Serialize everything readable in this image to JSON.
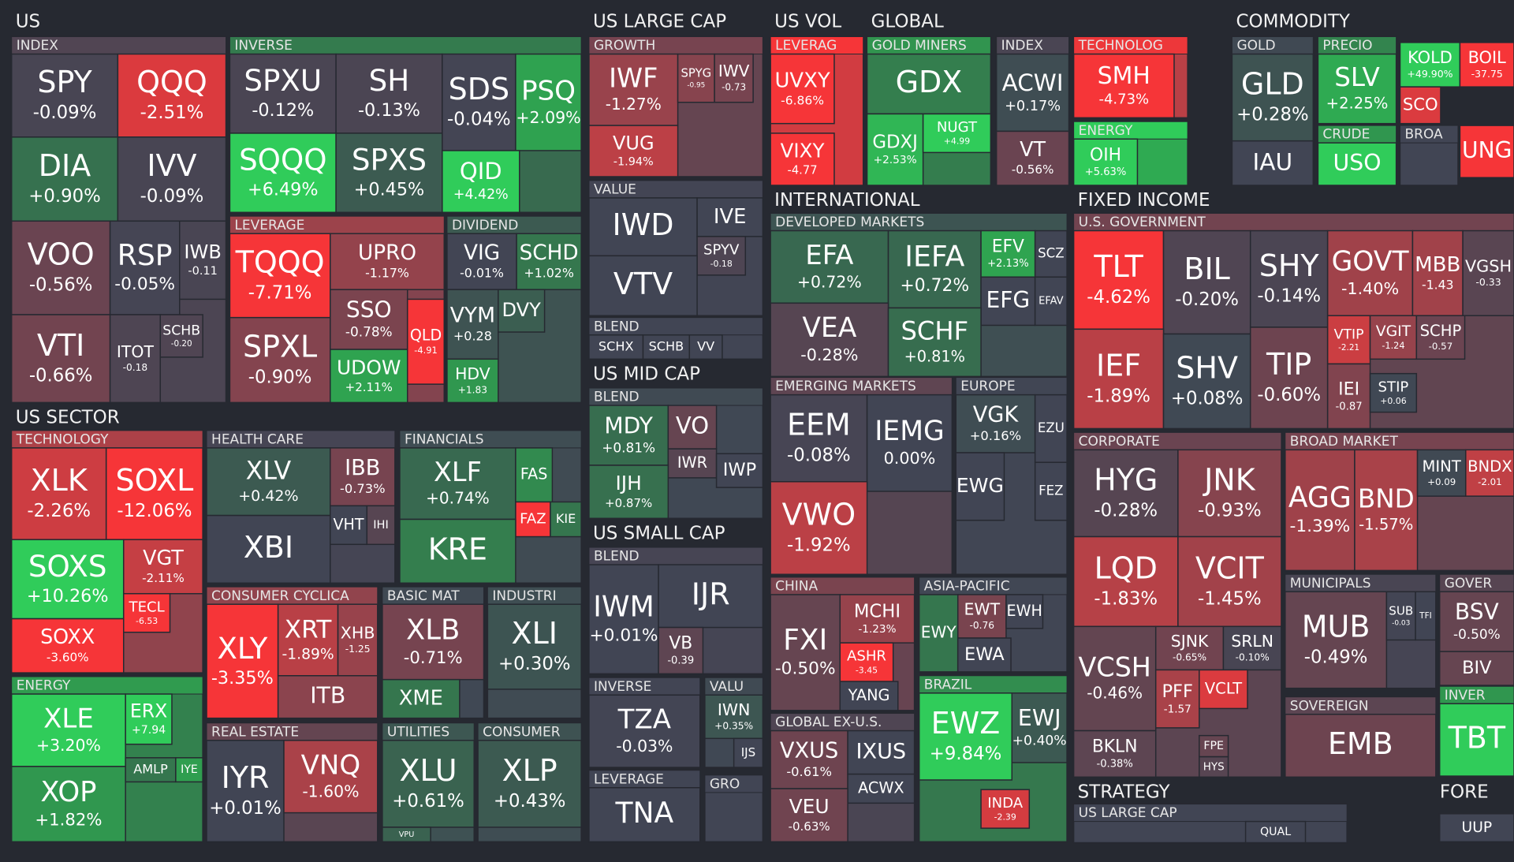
{
  "sections": [
    {
      "title": "US",
      "groups": [
        {
          "title": "INDEX",
          "tiles": [
            {
              "label": "SPY",
              "change": "-0.09%"
            },
            {
              "label": "QQQ",
              "change": "-2.51%"
            },
            {
              "label": "DIA",
              "change": "+0.90%"
            },
            {
              "label": "IVV",
              "change": "-0.09%"
            },
            {
              "label": "VOO",
              "change": "-0.56%"
            },
            {
              "label": "RSP",
              "change": "-0.05%"
            },
            {
              "label": "IWB",
              "change": "-0.11"
            },
            {
              "label": "VTI",
              "change": "-0.66%"
            },
            {
              "label": "ITOT",
              "change": "-0.18"
            },
            {
              "label": "SCHB",
              "change": "-0.20"
            }
          ]
        },
        {
          "title": "INVERSE",
          "tiles": [
            {
              "label": "SPXU",
              "change": "-0.12%"
            },
            {
              "label": "SH",
              "change": "-0.13%"
            },
            {
              "label": "SDS",
              "change": "-0.04%"
            },
            {
              "label": "PSQ",
              "change": "+2.09%"
            },
            {
              "label": "SQQQ",
              "change": "+6.49%"
            },
            {
              "label": "SPXS",
              "change": "+0.45%"
            },
            {
              "label": "QID",
              "change": "+4.42%"
            }
          ]
        },
        {
          "title": "LEVERAGE",
          "tiles": [
            {
              "label": "TQQQ",
              "change": "-7.71%"
            },
            {
              "label": "UPRO",
              "change": "-1.17%"
            },
            {
              "label": "SSO",
              "change": "-0.78%"
            },
            {
              "label": "QLD",
              "change": "-4.91"
            },
            {
              "label": "SPXL",
              "change": "-0.90%"
            },
            {
              "label": "UDOW",
              "change": "+2.11%"
            }
          ]
        },
        {
          "title": "DIVIDEND",
          "tiles": [
            {
              "label": "VIG",
              "change": "-0.01%"
            },
            {
              "label": "SCHD",
              "change": "+1.02%"
            },
            {
              "label": "VYM",
              "change": "+0.28"
            },
            {
              "label": "DVY"
            },
            {
              "label": "HDV",
              "change": "+1.83"
            }
          ]
        }
      ]
    },
    {
      "title": "US SECTOR",
      "groups": [
        {
          "title": "TECHNOLOGY",
          "tiles": [
            {
              "label": "XLK",
              "change": "-2.26%"
            },
            {
              "label": "SOXL",
              "change": "-12.06%"
            },
            {
              "label": "SOXS",
              "change": "+10.26%"
            },
            {
              "label": "VGT",
              "change": "-2.11%"
            },
            {
              "label": "TECL",
              "change": "-6.53"
            },
            {
              "label": "SOXX",
              "change": "-3.60%"
            }
          ]
        },
        {
          "title": "ENERGY",
          "tiles": [
            {
              "label": "XLE",
              "change": "+3.20%"
            },
            {
              "label": "ERX",
              "change": "+7.94"
            },
            {
              "label": "XOP",
              "change": "+1.82%"
            },
            {
              "label": "AMLP"
            },
            {
              "label": "IYE"
            }
          ]
        },
        {
          "title": "HEALTH CARE",
          "tiles": [
            {
              "label": "XLV",
              "change": "+0.42%"
            },
            {
              "label": "IBB",
              "change": "-0.73%"
            },
            {
              "label": "XBI"
            },
            {
              "label": "VHT"
            },
            {
              "label": "IHI"
            }
          ]
        },
        {
          "title": "FINANCIALS",
          "tiles": [
            {
              "label": "XLF",
              "change": "+0.74%"
            },
            {
              "label": "FAS"
            },
            {
              "label": "FAZ"
            },
            {
              "label": "KIE"
            },
            {
              "label": "KRE"
            }
          ]
        },
        {
          "title": "CONSUMER CYCLICA",
          "tiles": [
            {
              "label": "XLY",
              "change": "-3.35%"
            },
            {
              "label": "XRT",
              "change": "-1.89%"
            },
            {
              "label": "XHB",
              "change": "-1.25"
            },
            {
              "label": "ITB"
            }
          ]
        },
        {
          "title": "BASIC MAT",
          "tiles": [
            {
              "label": "XLB",
              "change": "-0.71%"
            },
            {
              "label": "XME"
            }
          ]
        },
        {
          "title": "INDUSTRI",
          "tiles": [
            {
              "label": "XLI",
              "change": "+0.30%"
            }
          ]
        },
        {
          "title": "REAL ESTATE",
          "tiles": [
            {
              "label": "IYR",
              "change": "+0.01%"
            },
            {
              "label": "VNQ",
              "change": "-1.60%"
            }
          ]
        },
        {
          "title": "UTILITIES",
          "tiles": [
            {
              "label": "XLU",
              "change": "+0.61%"
            },
            {
              "label": "VPU"
            }
          ]
        },
        {
          "title": "CONSUMER",
          "tiles": [
            {
              "label": "XLP",
              "change": "+0.43%"
            }
          ]
        }
      ]
    },
    {
      "title": "US LARGE CAP",
      "groups": [
        {
          "title": "GROWTH",
          "tiles": [
            {
              "label": "IWF",
              "change": "-1.27%"
            },
            {
              "label": "SPYG",
              "change": "-0.95"
            },
            {
              "label": "IWV",
              "change": "-0.73"
            },
            {
              "label": "VUG",
              "change": "-1.94%"
            }
          ]
        },
        {
          "title": "VALUE",
          "tiles": [
            {
              "label": "IWD"
            },
            {
              "label": "IVE"
            },
            {
              "label": "SPYV",
              "change": "-0.18"
            },
            {
              "label": "VTV"
            }
          ]
        },
        {
          "title": "BLEND",
          "tiles": [
            {
              "label": "SCHX"
            },
            {
              "label": "SCHB"
            },
            {
              "label": "VV"
            }
          ]
        }
      ]
    },
    {
      "title": "US MID CAP",
      "groups": [
        {
          "title": "BLEND",
          "tiles": [
            {
              "label": "MDY",
              "change": "+0.81%"
            },
            {
              "label": "VO"
            },
            {
              "label": "IWR"
            },
            {
              "label": "IJH",
              "change": "+0.87%"
            },
            {
              "label": "IWP"
            }
          ]
        }
      ]
    },
    {
      "title": "US SMALL CAP",
      "groups": [
        {
          "title": "BLEND",
          "tiles": [
            {
              "label": "IWM",
              "change": "+0.01%"
            },
            {
              "label": "IJR"
            },
            {
              "label": "VB",
              "change": "-0.39"
            }
          ]
        },
        {
          "title": "INVERSE",
          "tiles": [
            {
              "label": "TZA",
              "change": "-0.03%"
            }
          ]
        },
        {
          "title": "VALU",
          "tiles": [
            {
              "label": "IWN",
              "change": "+0.35%"
            },
            {
              "label": "IJS"
            }
          ]
        },
        {
          "title": "LEVERAGE",
          "tiles": [
            {
              "label": "TNA"
            }
          ]
        },
        {
          "title": "GRO",
          "tiles": []
        }
      ]
    },
    {
      "title": "US VOL",
      "groups": [
        {
          "title": "LEVERAG",
          "tiles": [
            {
              "label": "UVXY",
              "change": "-6.86%"
            },
            {
              "label": "VIXY",
              "change": "-4.77"
            }
          ]
        }
      ]
    },
    {
      "title": "GLOBAL",
      "groups": [
        {
          "title": "GOLD MINERS",
          "tiles": [
            {
              "label": "GDX"
            },
            {
              "label": "GDXJ",
              "change": "+2.53%"
            },
            {
              "label": "NUGT",
              "change": "+4.99"
            }
          ]
        },
        {
          "title": "INDEX",
          "tiles": [
            {
              "label": "ACWI",
              "change": "+0.17%"
            },
            {
              "label": "VT",
              "change": "-0.56%"
            }
          ]
        },
        {
          "title": "TECHNOLOG",
          "tiles": [
            {
              "label": "SMH",
              "change": "-4.73%"
            }
          ]
        },
        {
          "title": "ENERGY",
          "tiles": [
            {
              "label": "OIH",
              "change": "+5.63%"
            }
          ]
        }
      ]
    },
    {
      "title": "COMMODITY",
      "groups": [
        {
          "tiles": [
            {
              "label": "KOLD",
              "change": "+49.90%"
            },
            {
              "label": "BOIL",
              "change": "-37.75"
            },
            {
              "label": "SCO"
            },
            {
              "label": "UNG"
            }
          ]
        },
        {
          "title": "GOLD",
          "tiles": [
            {
              "label": "GLD",
              "change": "+0.28%"
            },
            {
              "label": "IAU"
            }
          ]
        },
        {
          "title": "PRECIO",
          "tiles": [
            {
              "label": "SLV",
              "change": "+2.25%"
            }
          ]
        },
        {
          "title": "CRUDE",
          "tiles": [
            {
              "label": "USO"
            }
          ]
        },
        {
          "title": "BROA",
          "tiles": []
        }
      ]
    },
    {
      "title": "INTERNATIONAL",
      "groups": [
        {
          "title": "DEVELOPED MARKETS",
          "tiles": [
            {
              "label": "EFA",
              "change": "+0.72%"
            },
            {
              "label": "IEFA",
              "change": "+0.72%"
            },
            {
              "label": "EFV",
              "change": "+2.13%"
            },
            {
              "label": "SCZ"
            },
            {
              "label": "EFG"
            },
            {
              "label": "EFAV"
            },
            {
              "label": "VEA",
              "change": "-0.28%"
            },
            {
              "label": "SCHF",
              "change": "+0.81%"
            }
          ]
        },
        {
          "title": "EMERGING MARKETS",
          "tiles": [
            {
              "label": "EEM",
              "change": "-0.08%"
            },
            {
              "label": "IEMG",
              "change": "0.00%"
            },
            {
              "label": "VWO",
              "change": "-1.92%"
            }
          ]
        },
        {
          "title": "EUROPE",
          "tiles": [
            {
              "label": "VGK",
              "change": "+0.16%"
            },
            {
              "label": "EZU"
            },
            {
              "label": "EWG"
            },
            {
              "label": "FEZ"
            }
          ]
        },
        {
          "title": "CHINA",
          "tiles": [
            {
              "label": "FXI",
              "change": "-0.50%"
            },
            {
              "label": "MCHI",
              "change": "-1.23%"
            },
            {
              "label": "ASHR",
              "change": "-3.45"
            },
            {
              "label": "YANG"
            }
          ]
        },
        {
          "title": "ASIA-PACIFIC",
          "tiles": [
            {
              "label": "EWT",
              "change": "-0.76"
            },
            {
              "label": "EWH"
            },
            {
              "label": "EWY"
            },
            {
              "label": "EWA"
            }
          ]
        },
        {
          "title": "GLOBAL EX-U.S.",
          "tiles": [
            {
              "label": "VXUS",
              "change": "-0.61%"
            },
            {
              "label": "IXUS"
            },
            {
              "label": "ACWX"
            },
            {
              "label": "VEU",
              "change": "-0.63%"
            }
          ]
        },
        {
          "title": "BRAZIL",
          "tiles": [
            {
              "label": "EWZ",
              "change": "+9.84%"
            },
            {
              "label": "EWJ",
              "change": "+0.40%"
            },
            {
              "label": "INDA",
              "change": "-2.39"
            }
          ]
        }
      ]
    },
    {
      "title": "FIXED INCOME",
      "groups": [
        {
          "title": "U.S. GOVERNMENT",
          "tiles": [
            {
              "label": "TLT",
              "change": "-4.62%"
            },
            {
              "label": "BIL",
              "change": "-0.20%"
            },
            {
              "label": "SHY",
              "change": "-0.14%"
            },
            {
              "label": "GOVT",
              "change": "-1.40%"
            },
            {
              "label": "MBB",
              "change": "-1.43"
            },
            {
              "label": "VGSH",
              "change": "-0.33"
            },
            {
              "label": "IEF",
              "change": "-1.89%"
            },
            {
              "label": "SHV",
              "change": "+0.08%"
            },
            {
              "label": "TIP",
              "change": "-0.60%"
            },
            {
              "label": "VTIP",
              "change": "-2.21"
            },
            {
              "label": "VGIT",
              "change": "-1.24"
            },
            {
              "label": "SCHP",
              "change": "-0.57"
            },
            {
              "label": "IEI",
              "change": "-0.87"
            },
            {
              "label": "STIP",
              "change": "+0.06"
            }
          ]
        },
        {
          "title": "CORPORATE",
          "tiles": [
            {
              "label": "HYG",
              "change": "-0.28%"
            },
            {
              "label": "JNK",
              "change": "-0.93%"
            },
            {
              "label": "LQD",
              "change": "-1.83%"
            },
            {
              "label": "VCIT",
              "change": "-1.45%"
            },
            {
              "label": "VCSH",
              "change": "-0.46%"
            },
            {
              "label": "SJNK",
              "change": "-0.65%"
            },
            {
              "label": "SRLN",
              "change": "-0.10%"
            },
            {
              "label": "PFF",
              "change": "-1.57"
            },
            {
              "label": "VCLT"
            },
            {
              "label": "BKLN",
              "change": "-0.38%"
            },
            {
              "label": "FPE"
            },
            {
              "label": "HYS"
            }
          ]
        },
        {
          "title": "BROAD MARKET",
          "tiles": [
            {
              "label": "AGG",
              "change": "-1.39%"
            },
            {
              "label": "BND",
              "change": "-1.57%"
            },
            {
              "label": "MINT",
              "change": "+0.09"
            },
            {
              "label": "BNDX",
              "change": "-2.01"
            }
          ]
        },
        {
          "title": "MUNICIPALS",
          "tiles": [
            {
              "label": "MUB",
              "change": "-0.49%"
            },
            {
              "label": "SUB",
              "change": "-0.03"
            },
            {
              "label": "TFI"
            }
          ]
        },
        {
          "title": "GOVER",
          "tiles": [
            {
              "label": "BSV",
              "change": "-0.50%"
            },
            {
              "label": "BIV"
            }
          ]
        },
        {
          "title": "INVER",
          "tiles": [
            {
              "label": "TBT"
            }
          ]
        },
        {
          "title": "SOVEREIGN",
          "tiles": [
            {
              "label": "EMB"
            }
          ]
        }
      ]
    },
    {
      "title": "STRATEGY",
      "groups": [
        {
          "title": "US LARGE CAP",
          "tiles": [
            {
              "label": "QUAL"
            }
          ]
        }
      ]
    },
    {
      "title": "FORE",
      "groups": [
        {
          "tiles": [
            {
              "label": "UUP"
            }
          ]
        }
      ]
    }
  ]
}
